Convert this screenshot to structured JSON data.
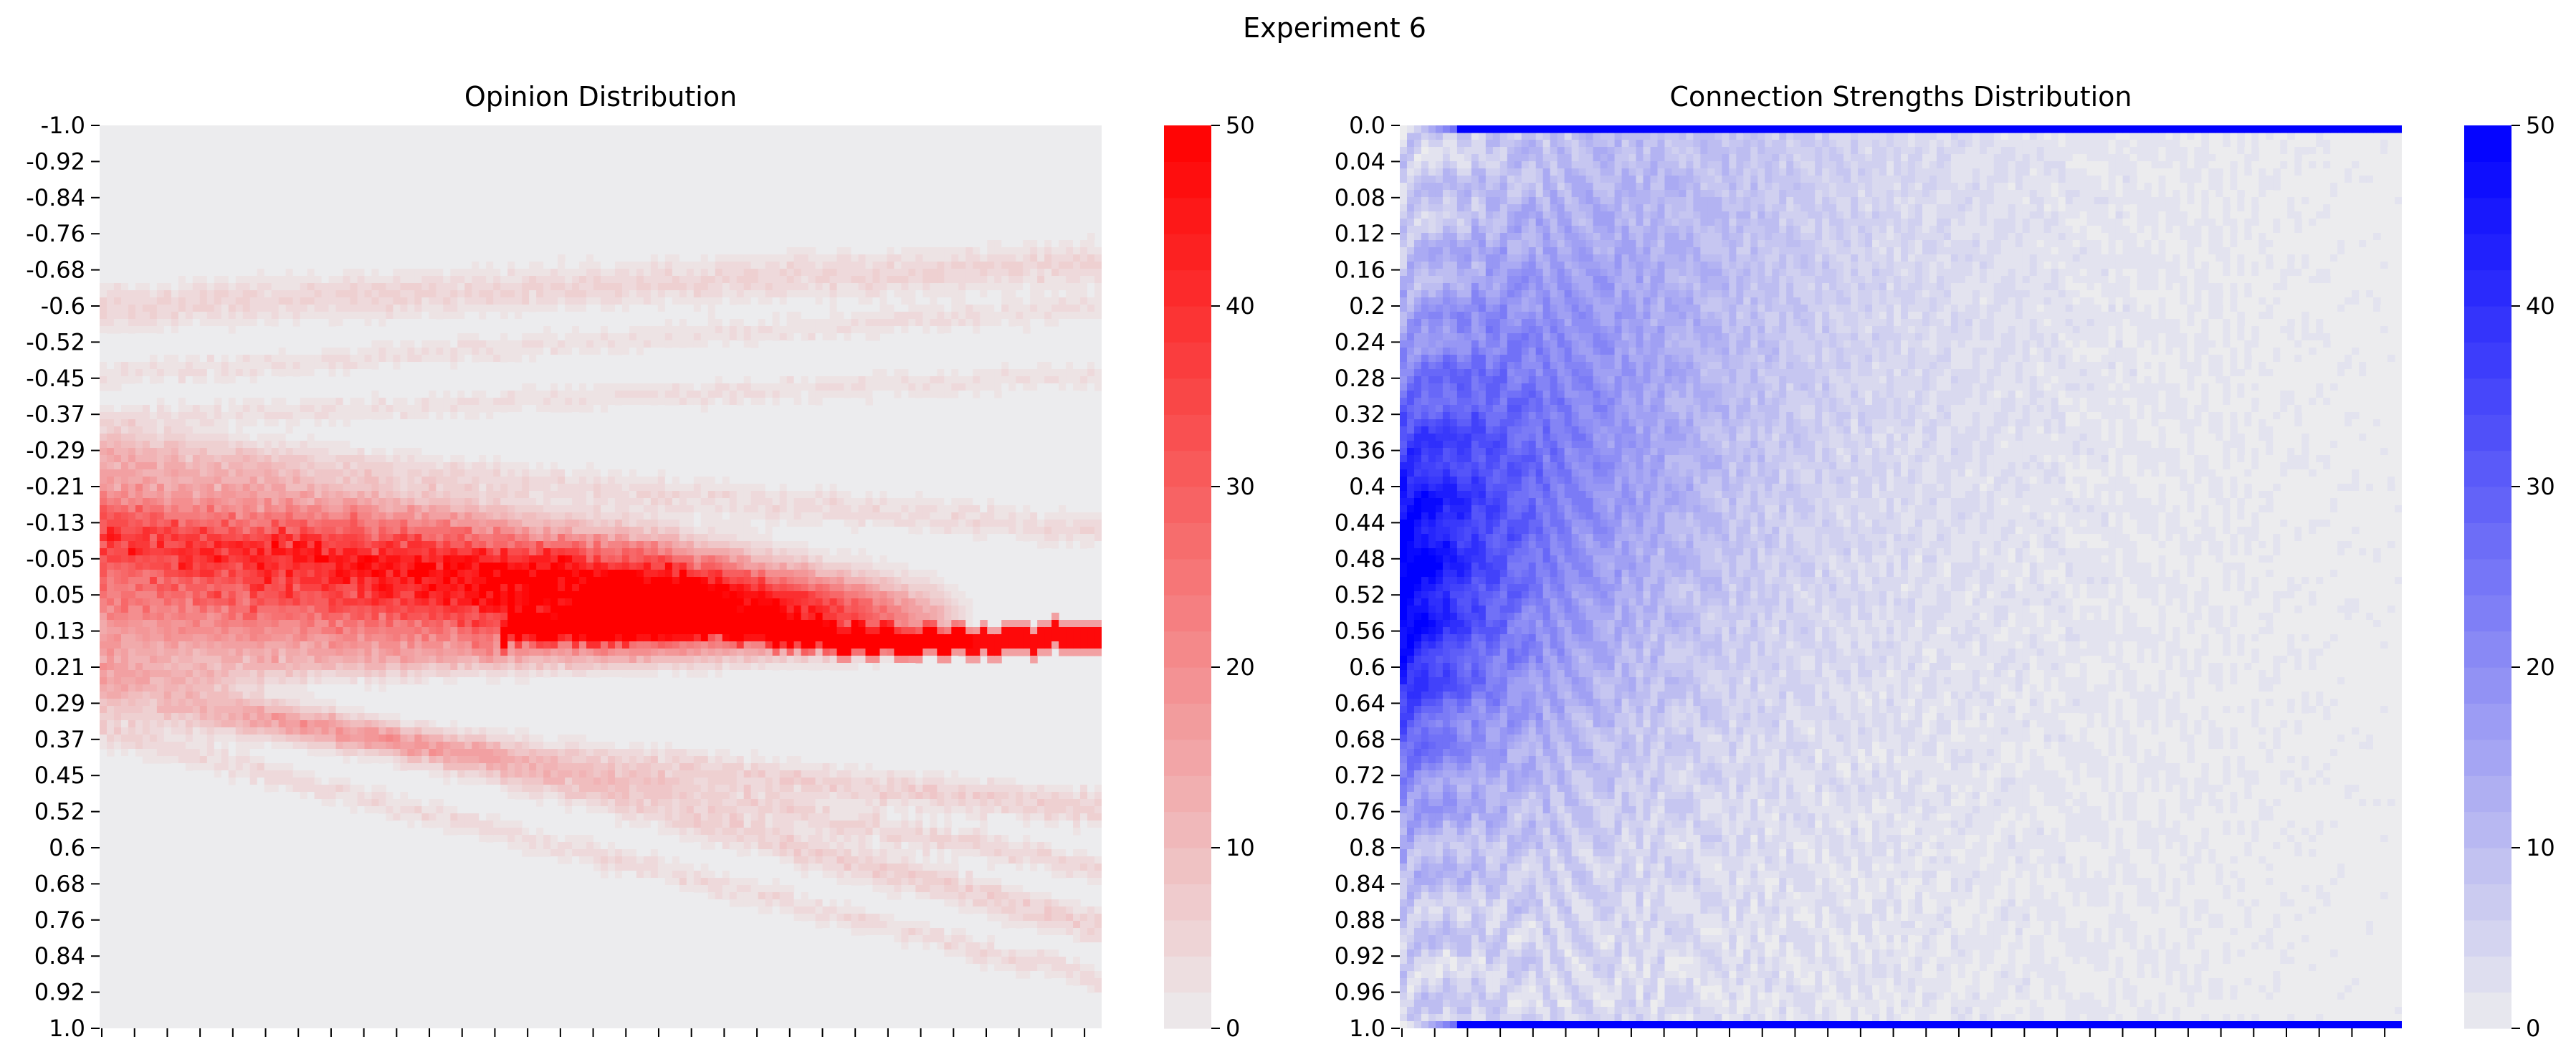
{
  "figure": {
    "title": "Experiment 6"
  },
  "chart_data": [
    {
      "type": "heatmap",
      "title": "Opinion Distribution",
      "color": "#ff0000",
      "background": "#ececee",
      "grid": false,
      "y_tick_labels": [
        "-1.0",
        "-0.92",
        "-0.84",
        "-0.76",
        "-0.68",
        "-0.6",
        "-0.52",
        "-0.45",
        "-0.37",
        "-0.29",
        "-0.21",
        "-0.13",
        "-0.05",
        "0.05",
        "0.13",
        "0.21",
        "0.29",
        "0.37",
        "0.45",
        "0.52",
        "0.6",
        "0.68",
        "0.76",
        "0.84",
        "0.92",
        "1.0"
      ],
      "x_tick_count": 31,
      "x_tick_labels": [],
      "colorbar": {
        "min": 0,
        "max": 50,
        "ticks": [
          "0",
          "10",
          "20",
          "30",
          "40",
          "50"
        ],
        "levels": 25
      },
      "bands": [
        {
          "y0": -0.6,
          "y1": -0.7,
          "width": 0.05,
          "level": 6
        },
        {
          "y0": -0.45,
          "y1": -0.6,
          "width": 0.03,
          "level": 4
        },
        {
          "y0": -0.35,
          "y1": -0.45,
          "width": 0.03,
          "level": 4
        },
        {
          "y0": -0.3,
          "y1": -0.1,
          "width": 0.04,
          "level": 5
        },
        {
          "y0": -0.25,
          "y1": 0.12,
          "width": 0.07,
          "level": 12
        },
        {
          "y0": -0.15,
          "y1": 0.12,
          "width": 0.07,
          "level": 16
        },
        {
          "y0": -0.1,
          "y1": 0.12,
          "width": 0.06,
          "level": 18
        },
        {
          "y0": -0.05,
          "y1": 0.12,
          "width": 0.06,
          "level": 16
        },
        {
          "y0": 0.0,
          "y1": 0.12,
          "width": 0.06,
          "level": 14
        },
        {
          "y0": 0.05,
          "y1": 0.12,
          "width": 0.05,
          "level": 12
        },
        {
          "y0": 0.1,
          "y1": 0.12,
          "width": 0.06,
          "level": 10
        },
        {
          "y0": 0.15,
          "y1": 0.12,
          "width": 0.05,
          "level": 10
        },
        {
          "y0": 0.22,
          "y1": 0.12,
          "width": 0.04,
          "level": 8
        },
        {
          "y0": 0.3,
          "y1": 0.52,
          "width": 0.04,
          "level": 7
        },
        {
          "y0": 0.25,
          "y1": 0.65,
          "width": 0.03,
          "level": 6
        },
        {
          "y0": 0.2,
          "y1": 0.78,
          "width": 0.04,
          "level": 7
        },
        {
          "y0": 0.35,
          "y1": 0.9,
          "width": 0.03,
          "level": 5
        }
      ],
      "peak_track": [
        {
          "x": 0.4,
          "y": 0.12,
          "level": 38
        },
        {
          "x": 0.5,
          "y": 0.11,
          "level": 44
        },
        {
          "x": 0.6,
          "y": 0.1,
          "level": 46
        },
        {
          "x": 0.65,
          "y": 0.11,
          "level": 46
        },
        {
          "x": 0.7,
          "y": 0.13,
          "level": 48
        },
        {
          "x": 0.8,
          "y": 0.15,
          "level": 48
        },
        {
          "x": 0.9,
          "y": 0.14,
          "level": 48
        },
        {
          "x": 1.0,
          "y": 0.13,
          "level": 48
        }
      ]
    },
    {
      "type": "heatmap",
      "title": "Connection Strengths Distribution",
      "color": "#0000ff",
      "background": "#ececee",
      "grid": false,
      "y_tick_labels": [
        "0.0",
        "0.04",
        "0.08",
        "0.12",
        "0.16",
        "0.2",
        "0.24",
        "0.28",
        "0.32",
        "0.36",
        "0.4",
        "0.44",
        "0.48",
        "0.52",
        "0.56",
        "0.6",
        "0.64",
        "0.68",
        "0.72",
        "0.76",
        "0.8",
        "0.84",
        "0.88",
        "0.92",
        "0.96",
        "1.0"
      ],
      "x_tick_count": 31,
      "x_tick_labels": [],
      "colorbar": {
        "min": 0,
        "max": 50,
        "ticks": [
          "0",
          "10",
          "20",
          "30",
          "40",
          "50"
        ],
        "levels": 25
      },
      "edge_rows": [
        {
          "y": 0.0,
          "level": 50
        },
        {
          "y": 1.0,
          "level": 50
        }
      ]
    }
  ]
}
